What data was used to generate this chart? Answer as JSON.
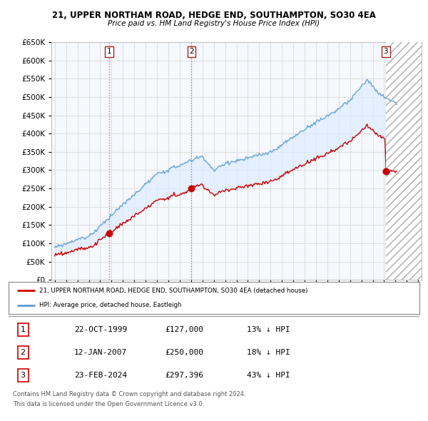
{
  "title": "21, UPPER NORTHAM ROAD, HEDGE END, SOUTHAMPTON, SO30 4EA",
  "subtitle": "Price paid vs. HM Land Registry's House Price Index (HPI)",
  "legend_line1": "21, UPPER NORTHAM ROAD, HEDGE END, SOUTHAMPTON, SO30 4EA (detached house)",
  "legend_line2": "HPI: Average price, detached house, Eastleigh",
  "footer1": "Contains HM Land Registry data © Crown copyright and database right 2024.",
  "footer2": "This data is licensed under the Open Government Licence v3.0.",
  "transactions": [
    {
      "num": 1,
      "date": "22-OCT-1999",
      "price": "£127,000",
      "hpi": "13% ↓ HPI"
    },
    {
      "num": 2,
      "date": "12-JAN-2007",
      "price": "£250,000",
      "hpi": "18% ↓ HPI"
    },
    {
      "num": 3,
      "date": "23-FEB-2024",
      "price": "£297,396",
      "hpi": "43% ↓ HPI"
    }
  ],
  "transaction_years": [
    1999.8,
    2007.04,
    2024.14
  ],
  "transaction_prices": [
    127000,
    250000,
    297396
  ],
  "hpi_color": "#5b9bd5",
  "hpi_fill_color": "#ddeeff",
  "price_color": "#cc0000",
  "marker_color": "#cc0000",
  "dashed_color": "#e06060",
  "ylim": [
    0,
    650000
  ],
  "yticks": [
    0,
    50000,
    100000,
    150000,
    200000,
    250000,
    300000,
    350000,
    400000,
    450000,
    500000,
    550000,
    600000,
    650000
  ],
  "xlim_start": 1994.7,
  "xlim_end": 2027.3,
  "background_color": "#ffffff",
  "plot_bg_color": "#f5f8fc",
  "grid_color": "#dddddd",
  "hatch_color": "#aaaaaa"
}
